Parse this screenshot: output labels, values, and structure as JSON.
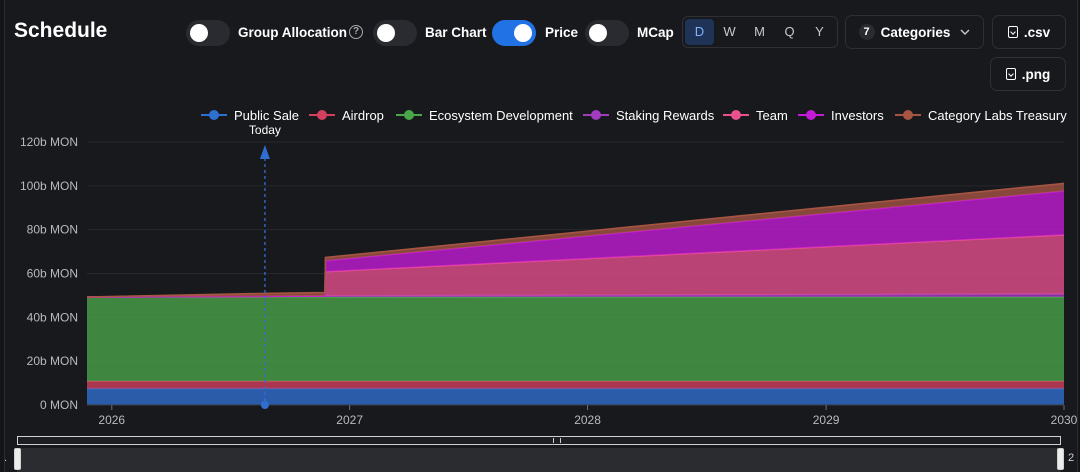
{
  "header": {
    "title": "Schedule",
    "toggles": [
      {
        "label": "Group Allocation",
        "on": false
      },
      {
        "label": "Bar Chart",
        "on": false
      },
      {
        "label": "Price",
        "on": true
      },
      {
        "label": "MCap",
        "on": false
      }
    ],
    "help_icon": "?",
    "periods": [
      "D",
      "W",
      "M",
      "Q",
      "Y"
    ],
    "active_period": "D",
    "categories_count": "7",
    "categories_label": "Categories",
    "csv_label": ".csv",
    "png_label": ".png"
  },
  "chart_data": {
    "type": "area",
    "stacked": true,
    "x": [
      "2025-11-24",
      "2026-08-24",
      "2026-11-24",
      "2026-11-25",
      "2030-01-01"
    ],
    "x_ticks": [
      "2026",
      "2027",
      "2028",
      "2029",
      "2030"
    ],
    "y_ticks": [
      "0 MON",
      "20b MON",
      "40b MON",
      "60b MON",
      "80b MON",
      "100b MON",
      "120b MON"
    ],
    "ylim": [
      0,
      120
    ],
    "y_unit": "b MON",
    "legend_position": "top-right",
    "series": [
      {
        "name": "Public Sale",
        "color": "#2f6fd1",
        "values": [
          7.5,
          7.5,
          7.5,
          7.5,
          7.5
        ]
      },
      {
        "name": "Airdrop",
        "color": "#d43f5e",
        "values": [
          3.3,
          3.3,
          3.3,
          3.3,
          3.3
        ]
      },
      {
        "name": "Ecosystem Development",
        "color": "#4aa64a",
        "values": [
          38.5,
          38.5,
          38.5,
          38.5,
          38.5
        ]
      },
      {
        "name": "Staking Rewards",
        "color": "#a13bc0",
        "values": [
          0,
          0.3,
          0.5,
          0.5,
          1.3
        ]
      },
      {
        "name": "Team",
        "color": "#e8508e",
        "values": [
          0,
          0,
          0,
          11,
          27
        ]
      },
      {
        "name": "Investors",
        "color": "#c51bd8",
        "values": [
          0,
          0,
          0,
          5,
          20
        ]
      },
      {
        "name": "Category Labs Treasury",
        "color": "#a65543",
        "values": [
          0,
          1.3,
          1.5,
          1.5,
          3.5
        ]
      }
    ],
    "annotation": {
      "label": "Today",
      "x": "2026-08-24"
    }
  },
  "colors": {
    "accent": "#2172e5",
    "background": "#18191d"
  },
  "zoom": {
    "start_label": ".",
    "end_label": "2"
  }
}
